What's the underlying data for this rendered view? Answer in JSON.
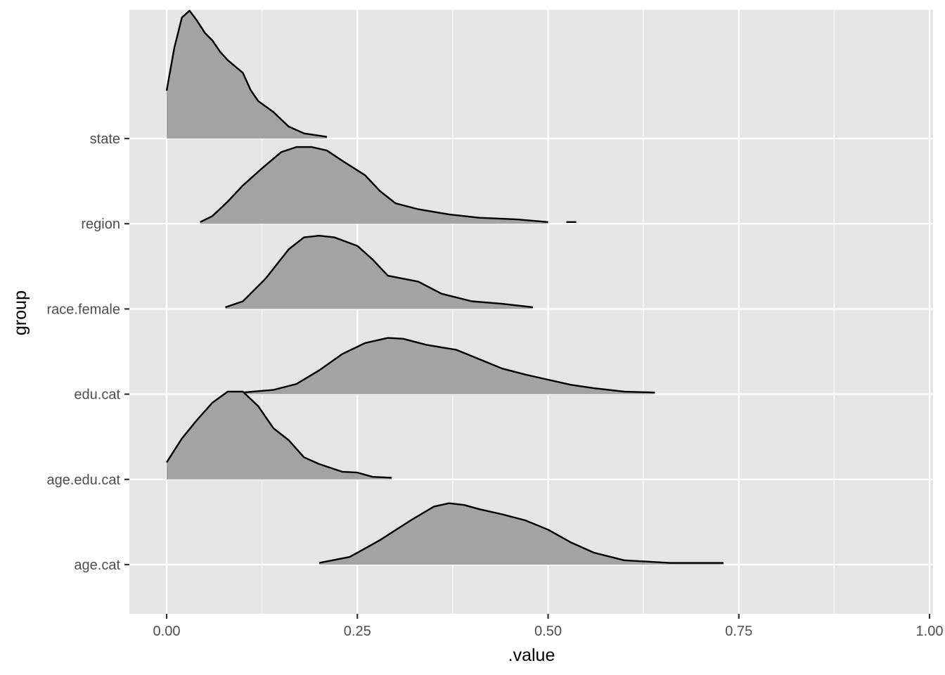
{
  "chart_data": {
    "type": "area",
    "xlabel": ".value",
    "ylabel": "group",
    "xlim": [
      -0.0475,
      1.0
    ],
    "x_ticks": [
      "0.00",
      "0.25",
      "0.50",
      "0.75",
      "1.00"
    ],
    "x_tick_values": [
      0,
      0.25,
      0.5,
      0.75,
      1.0
    ],
    "categories": [
      "state",
      "region",
      "race.female",
      "edu.cat",
      "age.edu.cat",
      "age.cat"
    ],
    "grid": true,
    "legend": "none",
    "colors": {
      "panel": "#e5e5e5",
      "grid": "#ffffff",
      "fill": "#a3a3a3",
      "line": "#000000",
      "tick_text": "#4d4d4d"
    },
    "series": [
      {
        "name": "state",
        "points": [
          [
            0.0,
            0.56
          ],
          [
            0.01,
            1.06
          ],
          [
            0.02,
            1.42
          ],
          [
            0.03,
            1.5
          ],
          [
            0.04,
            1.38
          ],
          [
            0.05,
            1.24
          ],
          [
            0.06,
            1.15
          ],
          [
            0.07,
            1.02
          ],
          [
            0.08,
            0.92
          ],
          [
            0.1,
            0.77
          ],
          [
            0.11,
            0.57
          ],
          [
            0.12,
            0.44
          ],
          [
            0.14,
            0.31
          ],
          [
            0.16,
            0.14
          ],
          [
            0.18,
            0.06
          ],
          [
            0.21,
            0.02
          ]
        ]
      },
      {
        "name": "region",
        "points": [
          [
            0.044,
            0.02
          ],
          [
            0.06,
            0.09
          ],
          [
            0.08,
            0.26
          ],
          [
            0.1,
            0.45
          ],
          [
            0.125,
            0.65
          ],
          [
            0.15,
            0.84
          ],
          [
            0.17,
            0.9
          ],
          [
            0.19,
            0.9
          ],
          [
            0.21,
            0.86
          ],
          [
            0.23,
            0.74
          ],
          [
            0.26,
            0.57
          ],
          [
            0.28,
            0.38
          ],
          [
            0.3,
            0.24
          ],
          [
            0.33,
            0.17
          ],
          [
            0.37,
            0.11
          ],
          [
            0.41,
            0.07
          ],
          [
            0.46,
            0.05
          ],
          [
            0.5,
            0.02
          ]
        ],
        "fragment": [
          [
            0.524,
            0.02
          ],
          [
            0.537,
            0.02
          ]
        ]
      },
      {
        "name": "race.female",
        "points": [
          [
            0.077,
            0.02
          ],
          [
            0.1,
            0.09
          ],
          [
            0.13,
            0.36
          ],
          [
            0.16,
            0.7
          ],
          [
            0.18,
            0.84
          ],
          [
            0.2,
            0.86
          ],
          [
            0.22,
            0.84
          ],
          [
            0.25,
            0.74
          ],
          [
            0.27,
            0.58
          ],
          [
            0.29,
            0.39
          ],
          [
            0.33,
            0.32
          ],
          [
            0.36,
            0.18
          ],
          [
            0.4,
            0.09
          ],
          [
            0.44,
            0.06
          ],
          [
            0.48,
            0.02
          ]
        ]
      },
      {
        "name": "edu.cat",
        "points": [
          [
            0.1,
            0.02
          ],
          [
            0.14,
            0.05
          ],
          [
            0.17,
            0.12
          ],
          [
            0.2,
            0.28
          ],
          [
            0.23,
            0.47
          ],
          [
            0.26,
            0.6
          ],
          [
            0.29,
            0.66
          ],
          [
            0.31,
            0.65
          ],
          [
            0.34,
            0.58
          ],
          [
            0.38,
            0.52
          ],
          [
            0.41,
            0.41
          ],
          [
            0.44,
            0.3
          ],
          [
            0.47,
            0.23
          ],
          [
            0.5,
            0.17
          ],
          [
            0.53,
            0.11
          ],
          [
            0.56,
            0.07
          ],
          [
            0.6,
            0.03
          ],
          [
            0.64,
            0.02
          ]
        ]
      },
      {
        "name": "age.edu.cat",
        "points": [
          [
            0.0,
            0.2
          ],
          [
            0.02,
            0.48
          ],
          [
            0.04,
            0.7
          ],
          [
            0.06,
            0.9
          ],
          [
            0.08,
            1.03
          ],
          [
            0.1,
            1.03
          ],
          [
            0.12,
            0.86
          ],
          [
            0.14,
            0.6
          ],
          [
            0.16,
            0.46
          ],
          [
            0.18,
            0.26
          ],
          [
            0.2,
            0.18
          ],
          [
            0.23,
            0.09
          ],
          [
            0.25,
            0.08
          ],
          [
            0.27,
            0.03
          ],
          [
            0.295,
            0.02
          ]
        ]
      },
      {
        "name": "age.cat",
        "points": [
          [
            0.2,
            0.02
          ],
          [
            0.24,
            0.09
          ],
          [
            0.28,
            0.29
          ],
          [
            0.32,
            0.52
          ],
          [
            0.35,
            0.68
          ],
          [
            0.37,
            0.72
          ],
          [
            0.39,
            0.7
          ],
          [
            0.41,
            0.65
          ],
          [
            0.44,
            0.59
          ],
          [
            0.47,
            0.52
          ],
          [
            0.5,
            0.41
          ],
          [
            0.53,
            0.26
          ],
          [
            0.56,
            0.14
          ],
          [
            0.6,
            0.05
          ],
          [
            0.66,
            0.02
          ],
          [
            0.73,
            0.02
          ]
        ]
      }
    ]
  }
}
